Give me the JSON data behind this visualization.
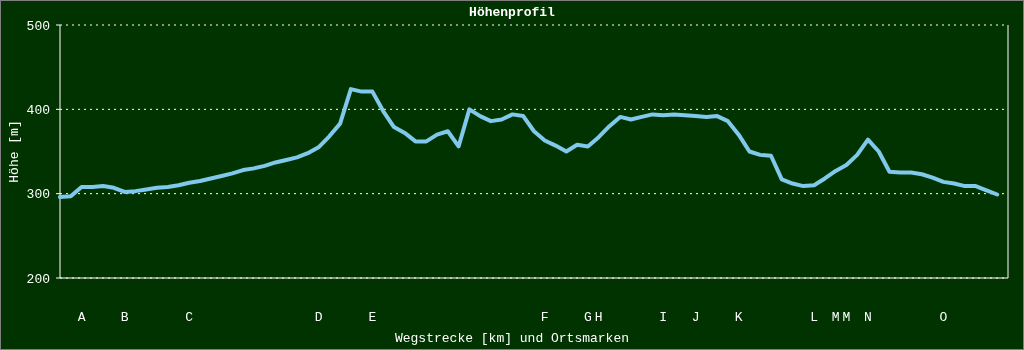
{
  "chart_data": {
    "type": "line",
    "title": "Höhenprofil",
    "xlabel": "Wegstrecke [km] und Ortsmarken",
    "ylabel": "Höhe [m]",
    "categories": [
      null,
      null,
      "A",
      null,
      null,
      null,
      "B",
      null,
      null,
      null,
      null,
      null,
      "C",
      null,
      null,
      null,
      null,
      null,
      null,
      null,
      null,
      null,
      null,
      null,
      "D",
      null,
      null,
      null,
      null,
      "E",
      null,
      null,
      null,
      null,
      null,
      null,
      null,
      null,
      null,
      null,
      null,
      null,
      null,
      null,
      null,
      "F",
      null,
      null,
      null,
      "G",
      "H",
      null,
      null,
      null,
      null,
      null,
      "I",
      null,
      null,
      "J",
      null,
      null,
      null,
      "K",
      null,
      null,
      null,
      null,
      null,
      null,
      "L",
      null,
      "M",
      "M",
      null,
      "N",
      null,
      null,
      null,
      null,
      null,
      null,
      "O",
      null,
      null,
      null,
      null,
      null,
      null
    ],
    "ylim": [
      200,
      500
    ],
    "yticks": [
      200,
      300,
      400,
      500
    ],
    "grid": "y",
    "series": [
      {
        "color": "#80c8ec",
        "values": [
          296,
          297,
          308,
          308,
          309,
          307,
          302,
          303,
          305,
          307,
          308,
          310,
          313,
          315,
          318,
          321,
          324,
          328,
          330,
          333,
          337,
          340,
          343,
          348,
          355,
          368,
          383,
          424,
          421,
          421,
          398,
          379,
          372,
          362,
          362,
          370,
          374,
          356,
          400,
          392,
          386,
          388,
          394,
          392,
          374,
          363,
          357,
          350,
          358,
          356,
          367,
          380,
          391,
          388,
          391,
          394,
          393,
          394,
          393,
          392,
          391,
          392,
          386,
          370,
          350,
          346,
          345,
          317,
          312,
          309,
          310,
          318,
          327,
          334,
          346,
          364,
          350,
          326,
          325,
          325,
          323,
          319,
          314,
          312,
          309,
          309,
          304,
          299,
          null
        ]
      }
    ]
  }
}
